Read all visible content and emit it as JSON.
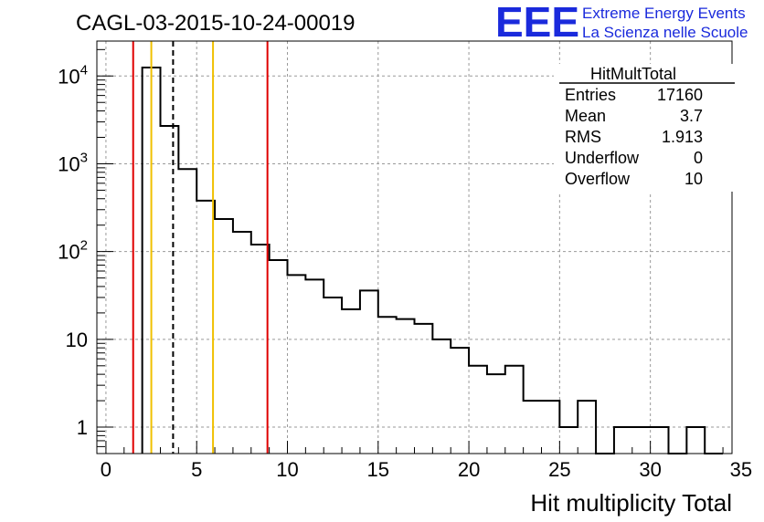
{
  "chart_data": {
    "type": "histogram",
    "title": "CAGL-03-2015-10-24-00019",
    "xlabel": "Hit multiplicity Total",
    "ylabel": "",
    "xlim": [
      -0.5,
      34.5
    ],
    "ylim": [
      0.5,
      25000
    ],
    "log_y": true,
    "grid": true,
    "x_ticks": [
      0,
      5,
      10,
      15,
      20,
      25,
      30,
      35
    ],
    "x_tick_labels": [
      "0",
      "5",
      "10",
      "15",
      "20",
      "25",
      "30",
      "35"
    ],
    "y_ticks": [
      1,
      10,
      100,
      1000,
      10000
    ],
    "y_tick_labels": [
      {
        "base": "1",
        "exp": ""
      },
      {
        "base": "10",
        "exp": ""
      },
      {
        "base": "10",
        "exp": "2"
      },
      {
        "base": "10",
        "exp": "3"
      },
      {
        "base": "10",
        "exp": "4"
      }
    ],
    "bin_width": 1,
    "bins": [
      {
        "x": 2.5,
        "count": 12500
      },
      {
        "x": 3.5,
        "count": 2700
      },
      {
        "x": 4.5,
        "count": 870
      },
      {
        "x": 5.5,
        "count": 380
      },
      {
        "x": 6.5,
        "count": 235
      },
      {
        "x": 7.5,
        "count": 168
      },
      {
        "x": 8.5,
        "count": 120
      },
      {
        "x": 9.5,
        "count": 80
      },
      {
        "x": 10.5,
        "count": 54
      },
      {
        "x": 11.5,
        "count": 48
      },
      {
        "x": 12.5,
        "count": 30
      },
      {
        "x": 13.5,
        "count": 22
      },
      {
        "x": 14.5,
        "count": 36
      },
      {
        "x": 15.5,
        "count": 18
      },
      {
        "x": 16.5,
        "count": 17
      },
      {
        "x": 17.5,
        "count": 15
      },
      {
        "x": 18.5,
        "count": 10
      },
      {
        "x": 19.5,
        "count": 8
      },
      {
        "x": 20.5,
        "count": 5
      },
      {
        "x": 21.5,
        "count": 4
      },
      {
        "x": 22.5,
        "count": 5
      },
      {
        "x": 23.5,
        "count": 2
      },
      {
        "x": 24.5,
        "count": 2
      },
      {
        "x": 25.5,
        "count": 1
      },
      {
        "x": 26.5,
        "count": 2
      },
      {
        "x": 27.5,
        "count": 0
      },
      {
        "x": 28.5,
        "count": 1
      },
      {
        "x": 29.5,
        "count": 1
      },
      {
        "x": 30.5,
        "count": 1
      },
      {
        "x": 31.5,
        "count": 0
      },
      {
        "x": 32.5,
        "count": 1
      },
      {
        "x": 33.5,
        "count": 0
      }
    ],
    "vertical_lines": [
      {
        "x": 1.5,
        "color": "#e00000",
        "style": "solid"
      },
      {
        "x": 2.5,
        "color": "#f0c000",
        "style": "solid"
      },
      {
        "x": 3.7,
        "color": "#000000",
        "style": "dashed"
      },
      {
        "x": 5.9,
        "color": "#f0c000",
        "style": "solid"
      },
      {
        "x": 8.9,
        "color": "#e00000",
        "style": "solid"
      }
    ],
    "stats_box": {
      "title": "HitMultTotal",
      "position": "top-right",
      "rows": [
        {
          "label": "Entries",
          "value": "17160"
        },
        {
          "label": "Mean",
          "value": "3.7"
        },
        {
          "label": "RMS",
          "value": "1.913"
        },
        {
          "label": "Underflow",
          "value": "0"
        },
        {
          "label": "Overflow",
          "value": "10"
        }
      ]
    }
  },
  "logo": {
    "big_text": "EEE",
    "line1": "Extreme Energy Events",
    "line2": "La Scienza nelle Scuole",
    "color": "#1a2adc"
  },
  "colors": {
    "histogram_line": "#000000",
    "grid": "#9a9a9a",
    "frame": "#000000"
  }
}
